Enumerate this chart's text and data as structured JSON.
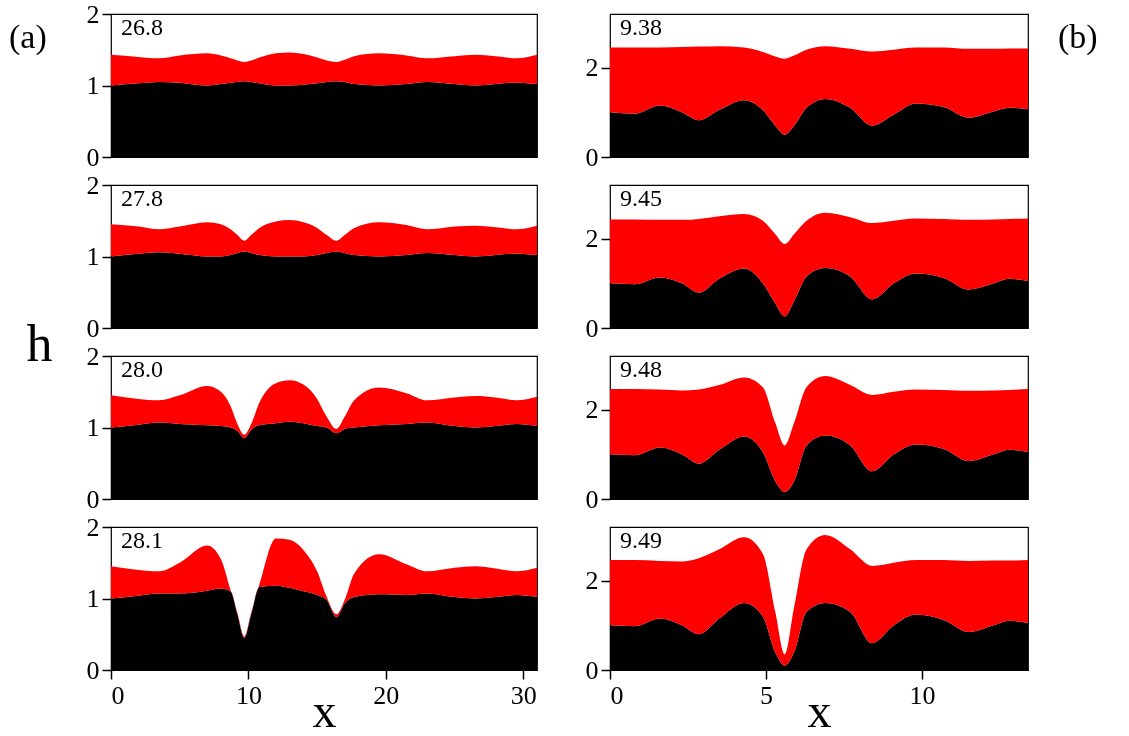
{
  "chart_data": [
    {
      "type": "area",
      "title": "26.8",
      "annotations": [
        "(a)"
      ],
      "stacked": true,
      "tick_labels": "y",
      "xlim": [
        0,
        31
      ],
      "xticks": [
        0,
        10,
        20,
        30
      ],
      "ylim": [
        0,
        2
      ],
      "yticks": [
        0,
        1,
        2
      ],
      "x": [
        0,
        2,
        3.5,
        5,
        7,
        8,
        8.7,
        9.2,
        9.7,
        10.2,
        10.8,
        12,
        13,
        14,
        15,
        15.7,
        16.4,
        17,
        17.7,
        19.5,
        21.5,
        23,
        25,
        26.5,
        28,
        29.5,
        31
      ],
      "series": [
        {
          "color": "#000000",
          "values": [
            1.0,
            1.03,
            1.05,
            1.04,
            1.0,
            1.02,
            1.04,
            1.05,
            1.06,
            1.05,
            1.03,
            1.0,
            1.0,
            1.01,
            1.03,
            1.05,
            1.06,
            1.05,
            1.02,
            1.0,
            1.02,
            1.05,
            1.02,
            1.0,
            1.02,
            1.04,
            1.02
          ]
        },
        {
          "color": "#ff0000",
          "values": [
            0.43,
            0.37,
            0.33,
            0.38,
            0.45,
            0.4,
            0.34,
            0.3,
            0.27,
            0.3,
            0.36,
            0.45,
            0.46,
            0.43,
            0.36,
            0.3,
            0.27,
            0.31,
            0.39,
            0.45,
            0.4,
            0.33,
            0.39,
            0.43,
            0.39,
            0.34,
            0.41
          ]
        }
      ]
    },
    {
      "type": "area",
      "title": "27.8",
      "stacked": true,
      "tick_labels": "y",
      "xlim": [
        0,
        31
      ],
      "xticks": [
        0,
        10,
        20,
        30
      ],
      "ylim": [
        0,
        2
      ],
      "yticks": [
        0,
        1,
        2
      ],
      "x": [
        0,
        2,
        3.5,
        5,
        7,
        8,
        8.7,
        9.2,
        9.7,
        10.2,
        10.8,
        12,
        13,
        14,
        15,
        15.7,
        16.4,
        17,
        17.7,
        19.5,
        21.5,
        23,
        25,
        26.5,
        28,
        29.5,
        31
      ],
      "series": [
        {
          "color": "#000000",
          "values": [
            1.0,
            1.04,
            1.06,
            1.04,
            1.0,
            1.0,
            1.02,
            1.05,
            1.07,
            1.05,
            1.02,
            1.0,
            1.0,
            1.0,
            1.02,
            1.05,
            1.07,
            1.05,
            1.02,
            1.0,
            1.02,
            1.05,
            1.02,
            1.0,
            1.02,
            1.04,
            1.02
          ]
        },
        {
          "color": "#ff0000",
          "values": [
            0.45,
            0.38,
            0.32,
            0.38,
            0.48,
            0.45,
            0.36,
            0.25,
            0.15,
            0.25,
            0.38,
            0.49,
            0.51,
            0.48,
            0.38,
            0.25,
            0.15,
            0.25,
            0.38,
            0.48,
            0.42,
            0.33,
            0.4,
            0.43,
            0.39,
            0.34,
            0.41
          ]
        }
      ]
    },
    {
      "type": "area",
      "title": "28.0",
      "ylabel": "h",
      "stacked": true,
      "tick_labels": "y",
      "xlim": [
        0,
        31
      ],
      "xticks": [
        0,
        10,
        20,
        30
      ],
      "ylim": [
        0,
        2
      ],
      "yticks": [
        0,
        1,
        2
      ],
      "x": [
        0,
        2,
        3.5,
        5,
        7,
        8,
        8.7,
        9.2,
        9.7,
        10.2,
        10.8,
        12,
        13,
        14,
        15,
        15.7,
        16.4,
        17,
        17.7,
        19.5,
        21.5,
        23,
        25,
        26.5,
        28,
        29.5,
        31
      ],
      "series": [
        {
          "color": "#000000",
          "values": [
            1.0,
            1.04,
            1.07,
            1.05,
            1.03,
            1.02,
            1.0,
            0.95,
            0.85,
            0.97,
            1.03,
            1.06,
            1.08,
            1.06,
            1.02,
            1.0,
            0.92,
            0.98,
            1.0,
            1.03,
            1.05,
            1.07,
            1.02,
            1.0,
            1.02,
            1.05,
            1.02
          ]
        },
        {
          "color": "#ff0000",
          "values": [
            0.45,
            0.36,
            0.31,
            0.4,
            0.55,
            0.48,
            0.3,
            0.1,
            0.05,
            0.08,
            0.32,
            0.56,
            0.58,
            0.54,
            0.38,
            0.15,
            0.06,
            0.17,
            0.38,
            0.53,
            0.43,
            0.31,
            0.4,
            0.44,
            0.4,
            0.33,
            0.41
          ]
        }
      ]
    },
    {
      "type": "area",
      "title": "28.1",
      "xlabel": "x",
      "stacked": true,
      "xlim": [
        0,
        31
      ],
      "xticks": [
        0,
        10,
        20,
        30
      ],
      "ylim": [
        0,
        2
      ],
      "yticks": [
        0,
        1,
        2
      ],
      "x": [
        0,
        2,
        3.5,
        5,
        7,
        8,
        8.7,
        9.2,
        9.7,
        10.2,
        10.8,
        12,
        13,
        14,
        15,
        15.7,
        16.4,
        17,
        17.7,
        19.5,
        21.5,
        23,
        25,
        26.5,
        28,
        29.5,
        31
      ],
      "series": [
        {
          "color": "#000000",
          "values": [
            1.0,
            1.04,
            1.07,
            1.07,
            1.11,
            1.14,
            1.1,
            0.78,
            0.45,
            0.78,
            1.16,
            1.18,
            1.15,
            1.1,
            1.05,
            0.98,
            0.74,
            0.93,
            1.02,
            1.06,
            1.05,
            1.07,
            1.02,
            1.0,
            1.02,
            1.05,
            1.02
          ]
        },
        {
          "color": "#ff0000",
          "values": [
            0.45,
            0.36,
            0.31,
            0.43,
            0.63,
            0.41,
            0.02,
            0.02,
            0.02,
            0.02,
            0.04,
            0.66,
            0.67,
            0.58,
            0.33,
            0.04,
            0.04,
            0.05,
            0.33,
            0.56,
            0.43,
            0.31,
            0.41,
            0.45,
            0.4,
            0.33,
            0.41
          ]
        }
      ]
    },
    {
      "type": "area",
      "title": "9.38",
      "annotations": [
        "(b)"
      ],
      "stacked": true,
      "tick_labels": "y",
      "xlim": [
        0,
        13.4
      ],
      "xticks": [
        0,
        5,
        10
      ],
      "ylim": [
        0,
        3.2
      ],
      "yticks": [
        0,
        2
      ],
      "x": [
        0,
        0.8,
        1.6,
        2.3,
        2.85,
        3.5,
        4.3,
        4.9,
        5.3,
        5.6,
        5.9,
        6.3,
        6.9,
        7.7,
        8.4,
        9.1,
        9.8,
        10.7,
        11.5,
        12.3,
        12.8,
        13.4
      ],
      "series": [
        {
          "color": "#000000",
          "values": [
            1.0,
            0.97,
            1.15,
            1.0,
            0.82,
            1.05,
            1.27,
            1.05,
            0.7,
            0.5,
            0.7,
            1.1,
            1.3,
            1.1,
            0.7,
            0.95,
            1.2,
            1.12,
            0.88,
            1.02,
            1.1,
            1.07
          ]
        },
        {
          "color": "#ff0000",
          "values": [
            1.45,
            1.48,
            1.3,
            1.46,
            1.65,
            1.43,
            1.18,
            1.3,
            1.55,
            1.7,
            1.57,
            1.3,
            1.18,
            1.32,
            1.66,
            1.45,
            1.25,
            1.33,
            1.54,
            1.4,
            1.33,
            1.36
          ]
        }
      ]
    },
    {
      "type": "area",
      "title": "9.45",
      "stacked": true,
      "tick_labels": "y",
      "xlim": [
        0,
        13.4
      ],
      "xticks": [
        0,
        5,
        10
      ],
      "ylim": [
        0,
        3.2
      ],
      "yticks": [
        0,
        2
      ],
      "x": [
        0,
        0.8,
        1.6,
        2.3,
        2.85,
        3.5,
        4.3,
        4.9,
        5.3,
        5.6,
        5.9,
        6.3,
        6.9,
        7.7,
        8.4,
        9.1,
        9.8,
        10.7,
        11.5,
        12.3,
        12.8,
        13.4
      ],
      "series": [
        {
          "color": "#000000",
          "values": [
            1.0,
            0.98,
            1.13,
            1.0,
            0.79,
            1.1,
            1.33,
            1.0,
            0.55,
            0.26,
            0.6,
            1.15,
            1.34,
            1.15,
            0.64,
            1.0,
            1.22,
            1.12,
            0.86,
            1.0,
            1.1,
            1.05
          ]
        },
        {
          "color": "#ff0000",
          "values": [
            1.43,
            1.45,
            1.29,
            1.42,
            1.65,
            1.4,
            1.22,
            1.4,
            1.55,
            1.62,
            1.5,
            1.25,
            1.24,
            1.33,
            1.71,
            1.4,
            1.23,
            1.32,
            1.56,
            1.43,
            1.34,
            1.4
          ]
        }
      ]
    },
    {
      "type": "area",
      "title": "9.48",
      "stacked": true,
      "tick_labels": "y",
      "xlim": [
        0,
        13.4
      ],
      "xticks": [
        0,
        5,
        10
      ],
      "ylim": [
        0,
        3.2
      ],
      "yticks": [
        0,
        2
      ],
      "x": [
        0,
        0.8,
        1.6,
        2.3,
        2.85,
        3.5,
        4.3,
        4.9,
        5.3,
        5.6,
        5.9,
        6.3,
        6.9,
        7.7,
        8.4,
        9.1,
        9.8,
        10.7,
        11.5,
        12.3,
        12.8,
        13.4
      ],
      "series": [
        {
          "color": "#000000",
          "values": [
            1.0,
            0.98,
            1.15,
            1.0,
            0.79,
            1.1,
            1.4,
            1.05,
            0.4,
            0.16,
            0.4,
            1.2,
            1.42,
            1.2,
            0.62,
            1.0,
            1.22,
            1.12,
            0.85,
            1.0,
            1.1,
            1.05
          ]
        },
        {
          "color": "#ff0000",
          "values": [
            1.46,
            1.48,
            1.3,
            1.43,
            1.66,
            1.45,
            1.32,
            1.45,
            1.3,
            1.04,
            1.3,
            1.3,
            1.33,
            1.35,
            1.71,
            1.4,
            1.23,
            1.32,
            1.57,
            1.43,
            1.34,
            1.41
          ]
        }
      ]
    },
    {
      "type": "area",
      "title": "9.49",
      "xlabel": "x",
      "stacked": true,
      "xlim": [
        0,
        13.4
      ],
      "xticks": [
        0,
        5,
        10
      ],
      "ylim": [
        0,
        3.2
      ],
      "yticks": [
        0,
        2
      ],
      "x": [
        0,
        0.8,
        1.6,
        2.3,
        2.85,
        3.5,
        4.3,
        4.9,
        5.3,
        5.6,
        5.9,
        6.3,
        6.9,
        7.7,
        8.4,
        9.1,
        9.8,
        10.7,
        11.5,
        12.3,
        12.8,
        13.4
      ],
      "series": [
        {
          "color": "#000000",
          "values": [
            1.0,
            0.98,
            1.15,
            1.0,
            0.8,
            1.15,
            1.5,
            1.2,
            0.4,
            0.1,
            0.4,
            1.3,
            1.5,
            1.3,
            0.6,
            1.0,
            1.24,
            1.12,
            0.85,
            1.0,
            1.1,
            1.05
          ]
        },
        {
          "color": "#ff0000",
          "values": [
            1.46,
            1.48,
            1.29,
            1.43,
            1.7,
            1.55,
            1.47,
            1.4,
            0.9,
            0.25,
            1.0,
            1.4,
            1.52,
            1.4,
            1.73,
            1.4,
            1.22,
            1.34,
            1.59,
            1.45,
            1.35,
            1.41
          ]
        }
      ]
    }
  ]
}
